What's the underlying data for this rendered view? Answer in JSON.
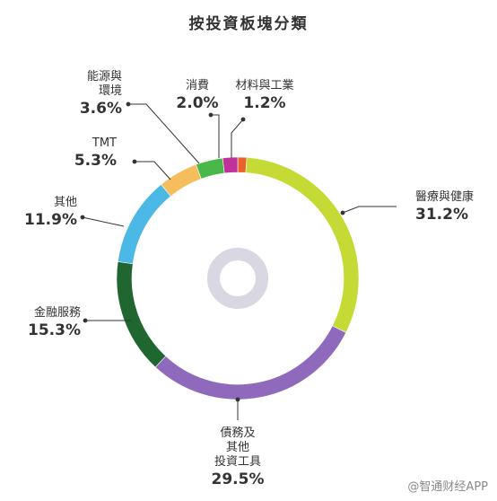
{
  "chart_data": {
    "type": "pie",
    "title": "按投資板塊分類",
    "categories": [
      "醫療與健康",
      "債務及其他投資工具",
      "金融服務",
      "其他",
      "TMT",
      "能源與環境",
      "消費",
      "材料與工業"
    ],
    "values": [
      31.2,
      29.5,
      15.3,
      11.9,
      5.3,
      3.6,
      2.0,
      1.2
    ],
    "value_labels": [
      "31.2%",
      "29.5%",
      "15.3%",
      "11.9%",
      "5.3%",
      "3.6%",
      "2.0%",
      "1.2%"
    ],
    "colors": [
      "#c6da35",
      "#8f69bb",
      "#1f6630",
      "#4cb8e6",
      "#f5bd5c",
      "#4ab74a",
      "#c0329a",
      "#e8622c"
    ],
    "label_lines": {
      "health": [
        "醫療與健康"
      ],
      "debt": [
        "債務及",
        "其他",
        "投資工具"
      ],
      "finance": [
        "金融服務"
      ],
      "other": [
        "其他"
      ],
      "tmt": [
        "TMT"
      ],
      "energy": [
        "能源與",
        "環境"
      ],
      "consumer": [
        "消費"
      ],
      "materials": [
        "材料與工業"
      ]
    },
    "legend": "none"
  },
  "watermark": "@智通财经APP"
}
